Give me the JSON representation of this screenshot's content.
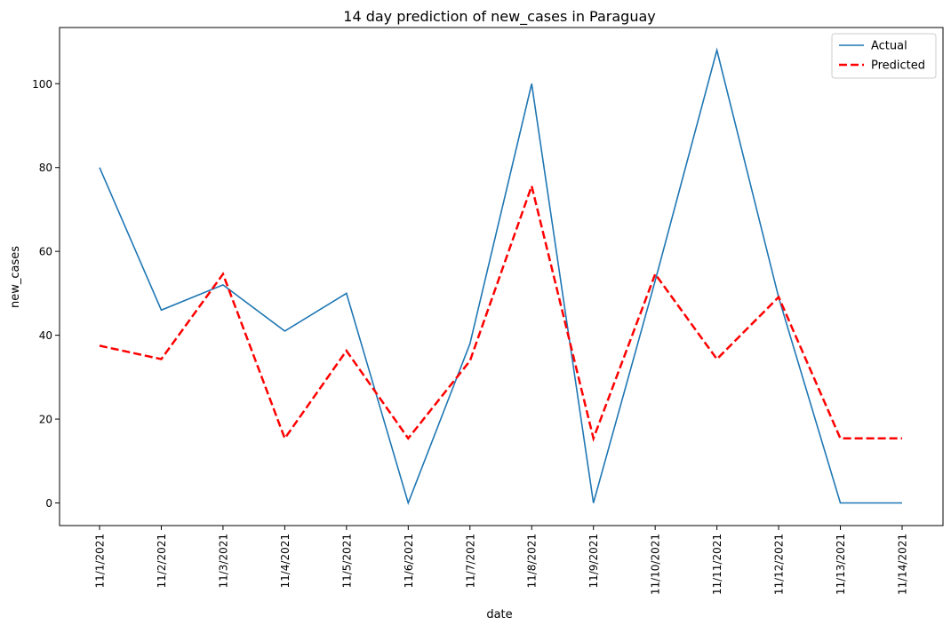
{
  "chart_data": {
    "type": "line",
    "title": "14 day prediction of new_cases in Paraguay",
    "xlabel": "date",
    "ylabel": "new_cases",
    "categories": [
      "11/1/2021",
      "11/2/2021",
      "11/3/2021",
      "11/4/2021",
      "11/5/2021",
      "11/6/2021",
      "11/7/2021",
      "11/8/2021",
      "11/9/2021",
      "11/10/2021",
      "11/11/2021",
      "11/12/2021",
      "11/13/2021",
      "11/14/2021"
    ],
    "ylim": [
      -5.4,
      113.4
    ],
    "yticks": [
      0,
      20,
      40,
      60,
      80,
      100
    ],
    "grid": false,
    "legend_position": "top-right",
    "series": [
      {
        "name": "Actual",
        "color": "#1f77b4",
        "style": "solid",
        "values": [
          80,
          46,
          52,
          41,
          50,
          0,
          38,
          100,
          0,
          53,
          108,
          49,
          0,
          0
        ]
      },
      {
        "name": "Predicted",
        "color": "#ff0000",
        "style": "dashed",
        "values": [
          37.5,
          34.3,
          54.6,
          15.4,
          36.3,
          15.4,
          33.9,
          75.6,
          15.4,
          54.6,
          34.3,
          49.1,
          15.4,
          15.4
        ]
      }
    ]
  }
}
